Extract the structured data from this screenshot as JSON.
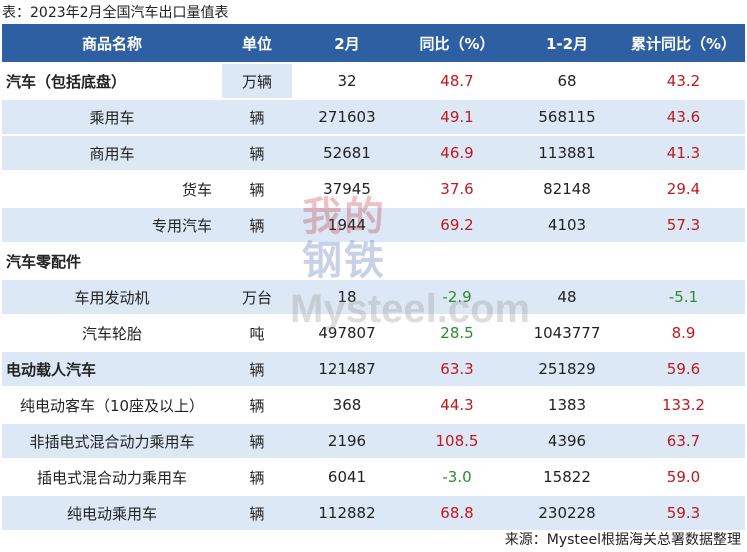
{
  "title": "表：2023年2月全国汽车出口量值表",
  "headers": [
    "商品名称",
    "单位",
    "2月",
    "同比（%）",
    "1-2月",
    "累计同比（%）"
  ],
  "rows": [
    {
      "name": "汽车（包括底盘）",
      "unit": "万辆",
      "feb": "32",
      "yoy": "48.7",
      "janfeb": "68",
      "cum": "43.2"
    },
    {
      "name": "乘用车",
      "unit": "辆",
      "feb": "271603",
      "yoy": "49.1",
      "janfeb": "568115",
      "cum": "43.6"
    },
    {
      "name": "商用车",
      "unit": "辆",
      "feb": "52681",
      "yoy": "46.9",
      "janfeb": "113881",
      "cum": "41.3"
    },
    {
      "name": "货车",
      "unit": "辆",
      "feb": "37945",
      "yoy": "37.6",
      "janfeb": "82148",
      "cum": "29.4"
    },
    {
      "name": "专用汽车",
      "unit": "辆",
      "feb": "1944",
      "yoy": "69.2",
      "janfeb": "4103",
      "cum": "57.3"
    },
    {
      "name": "汽车零配件",
      "unit": "",
      "feb": "",
      "yoy": "",
      "janfeb": "",
      "cum": ""
    },
    {
      "name": "车用发动机",
      "unit": "万台",
      "feb": "18",
      "yoy": "-2.9",
      "janfeb": "48",
      "cum": "-5.1"
    },
    {
      "name": "汽车轮胎",
      "unit": "吨",
      "feb": "497807",
      "yoy": "28.5",
      "janfeb": "1043777",
      "cum": "8.9"
    },
    {
      "name": "电动载人汽车",
      "unit": "辆",
      "feb": "121487",
      "yoy": "63.3",
      "janfeb": "251829",
      "cum": "59.6"
    },
    {
      "name": "纯电动客车（10座及以上）",
      "unit": "辆",
      "feb": "368",
      "yoy": "44.3",
      "janfeb": "1383",
      "cum": "133.2"
    },
    {
      "name": "非插电式混合动力乘用车",
      "unit": "辆",
      "feb": "2196",
      "yoy": "108.5",
      "janfeb": "4396",
      "cum": "63.7"
    },
    {
      "name": "插电式混合动力乘用车",
      "unit": "辆",
      "feb": "6041",
      "yoy": "-3.0",
      "janfeb": "15822",
      "cum": "59.0"
    },
    {
      "name": "纯电动乘用车",
      "unit": "辆",
      "feb": "112882",
      "yoy": "68.8",
      "janfeb": "230228",
      "cum": "59.3"
    }
  ],
  "source": "来源：Mysteel根据海关总署数据整理",
  "watermark": {
    "cn_top": "我的",
    "cn_bottom": "钢铁",
    "en": "Mysteel.com"
  },
  "colors": {
    "header_bg": "#2e5fa3",
    "band_bg": "#dde8f6",
    "positive": "#c0181e",
    "negative": "#2e8b2e"
  }
}
